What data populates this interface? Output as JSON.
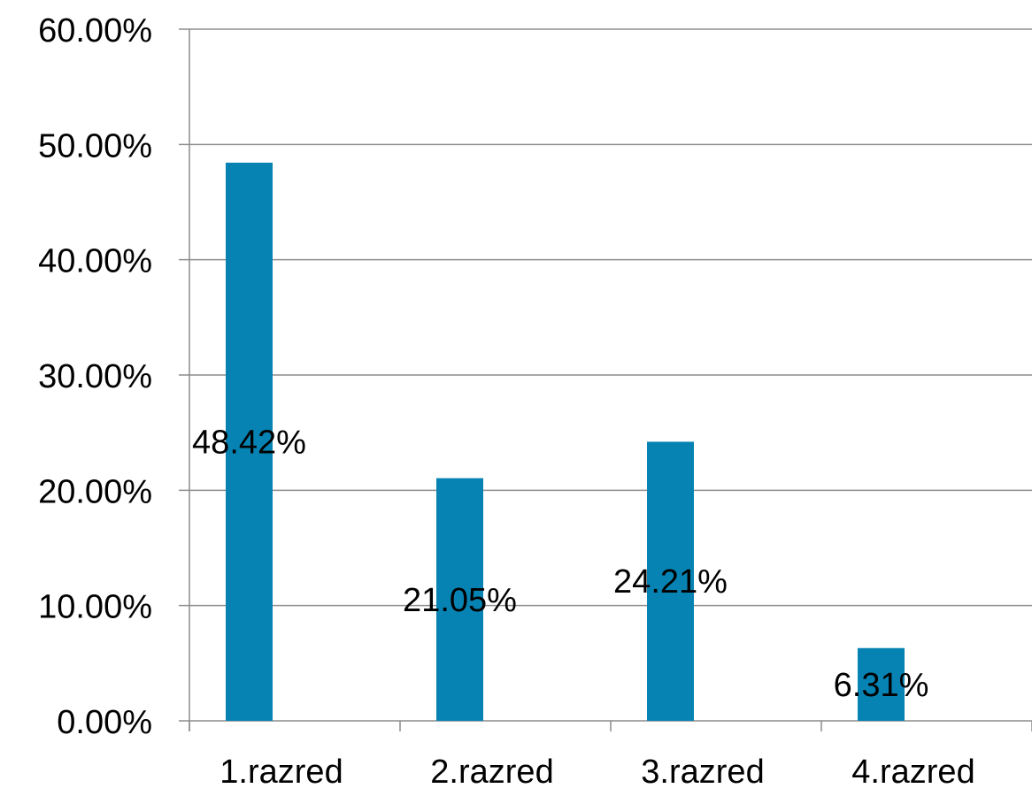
{
  "chart_data": {
    "type": "bar",
    "title": "",
    "xlabel": "",
    "ylabel": "",
    "categories": [
      "1.razred",
      "2.razred",
      "3.razred",
      "4.razred"
    ],
    "series": [
      {
        "values": [
          48.42,
          21.05,
          24.21,
          6.31
        ],
        "data_labels": [
          "48.42%",
          "21.05%",
          "24.21%",
          "6.31%"
        ]
      }
    ],
    "ylim": [
      0,
      60
    ],
    "y_ticks": [
      0,
      10,
      20,
      30,
      40,
      50,
      60
    ],
    "y_tick_labels": [
      "0.00%",
      "10.00%",
      "20.00%",
      "30.00%",
      "40.00%",
      "50.00%",
      "60.00%"
    ],
    "grid": true,
    "legend": "none",
    "colors": {
      "bar": "#0683B3",
      "grid": "#8C8C8C",
      "axis": "#8C8C8C",
      "text": "#000000"
    }
  }
}
